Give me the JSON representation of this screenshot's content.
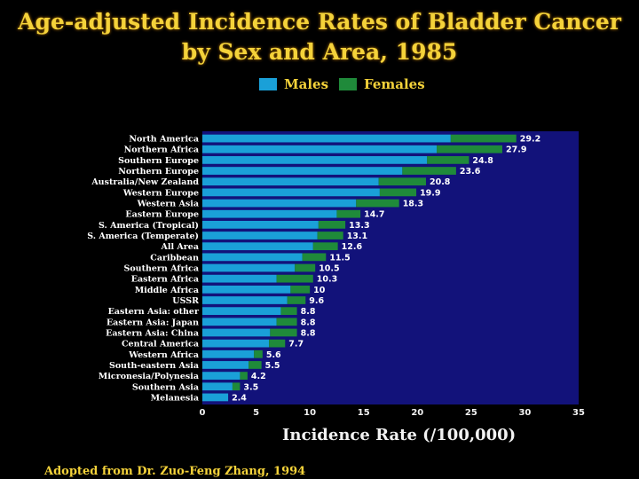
{
  "chart_data": {
    "type": "bar",
    "orientation": "horizontal",
    "stacked": true,
    "title_line1": "Age-adjusted Incidence Rates of Bladder Cancer",
    "title_line2": "by Sex and Area, 1985",
    "xlabel": "Incidence Rate (/100,000)",
    "xlim": [
      0,
      35
    ],
    "xticks": [
      0,
      5,
      10,
      15,
      20,
      25,
      30,
      35
    ],
    "legend_position": "top-center",
    "colors": {
      "males": "#1aa0d8",
      "females": "#1f8a3a",
      "plot_bg": "#12127a",
      "background": "#000000"
    },
    "categories": [
      "North America",
      "Northern Africa",
      "Southern Europe",
      "Northern Europe",
      "Australia/New Zealand",
      "Western Europe",
      "Western Asia",
      "Eastern Europe",
      "S. America (Tropical)",
      "S. America (Temperate)",
      "All Area",
      "Caribbean",
      "Southern Africa",
      "Eastern Africa",
      "Middle Africa",
      "USSR",
      "Eastern Asia: other",
      "Eastern Asia: Japan",
      "Eastern Asia: China",
      "Central America",
      "Western Africa",
      "South-eastern Asia",
      "Micronesia/Polynesia",
      "Southern Asia",
      "Melanesia"
    ],
    "totals": [
      "29.2",
      "27.9",
      "24.8",
      "23.6",
      "20.8",
      "19.9",
      "18.3",
      "14.7",
      "13.3",
      "13.1",
      "12.6",
      "11.5",
      "10.5",
      "10.3",
      "10",
      "9.6",
      "8.8",
      "8.8",
      "8.8",
      "7.7",
      "5.6",
      "5.5",
      "4.2",
      "3.5",
      "2.4"
    ],
    "series": [
      {
        "name": "Males",
        "values": [
          23.1,
          21.8,
          20.9,
          18.6,
          16.4,
          16.5,
          14.3,
          12.5,
          10.8,
          10.7,
          10.3,
          9.3,
          8.6,
          6.9,
          8.2,
          7.9,
          7.3,
          6.9,
          6.3,
          6.2,
          4.8,
          4.3,
          3.5,
          2.8,
          2.4
        ]
      },
      {
        "name": "Females",
        "values": [
          6.1,
          6.1,
          3.9,
          5.0,
          4.4,
          3.4,
          4.0,
          2.2,
          2.5,
          2.4,
          2.3,
          2.2,
          1.9,
          3.4,
          1.8,
          1.7,
          1.5,
          1.9,
          2.5,
          1.5,
          0.8,
          1.2,
          0.7,
          0.7,
          0.0
        ]
      }
    ]
  },
  "legend": {
    "males": "Males",
    "females": "Females"
  },
  "source_note": "Adopted from Dr. Zuo-Feng Zhang, 1994"
}
